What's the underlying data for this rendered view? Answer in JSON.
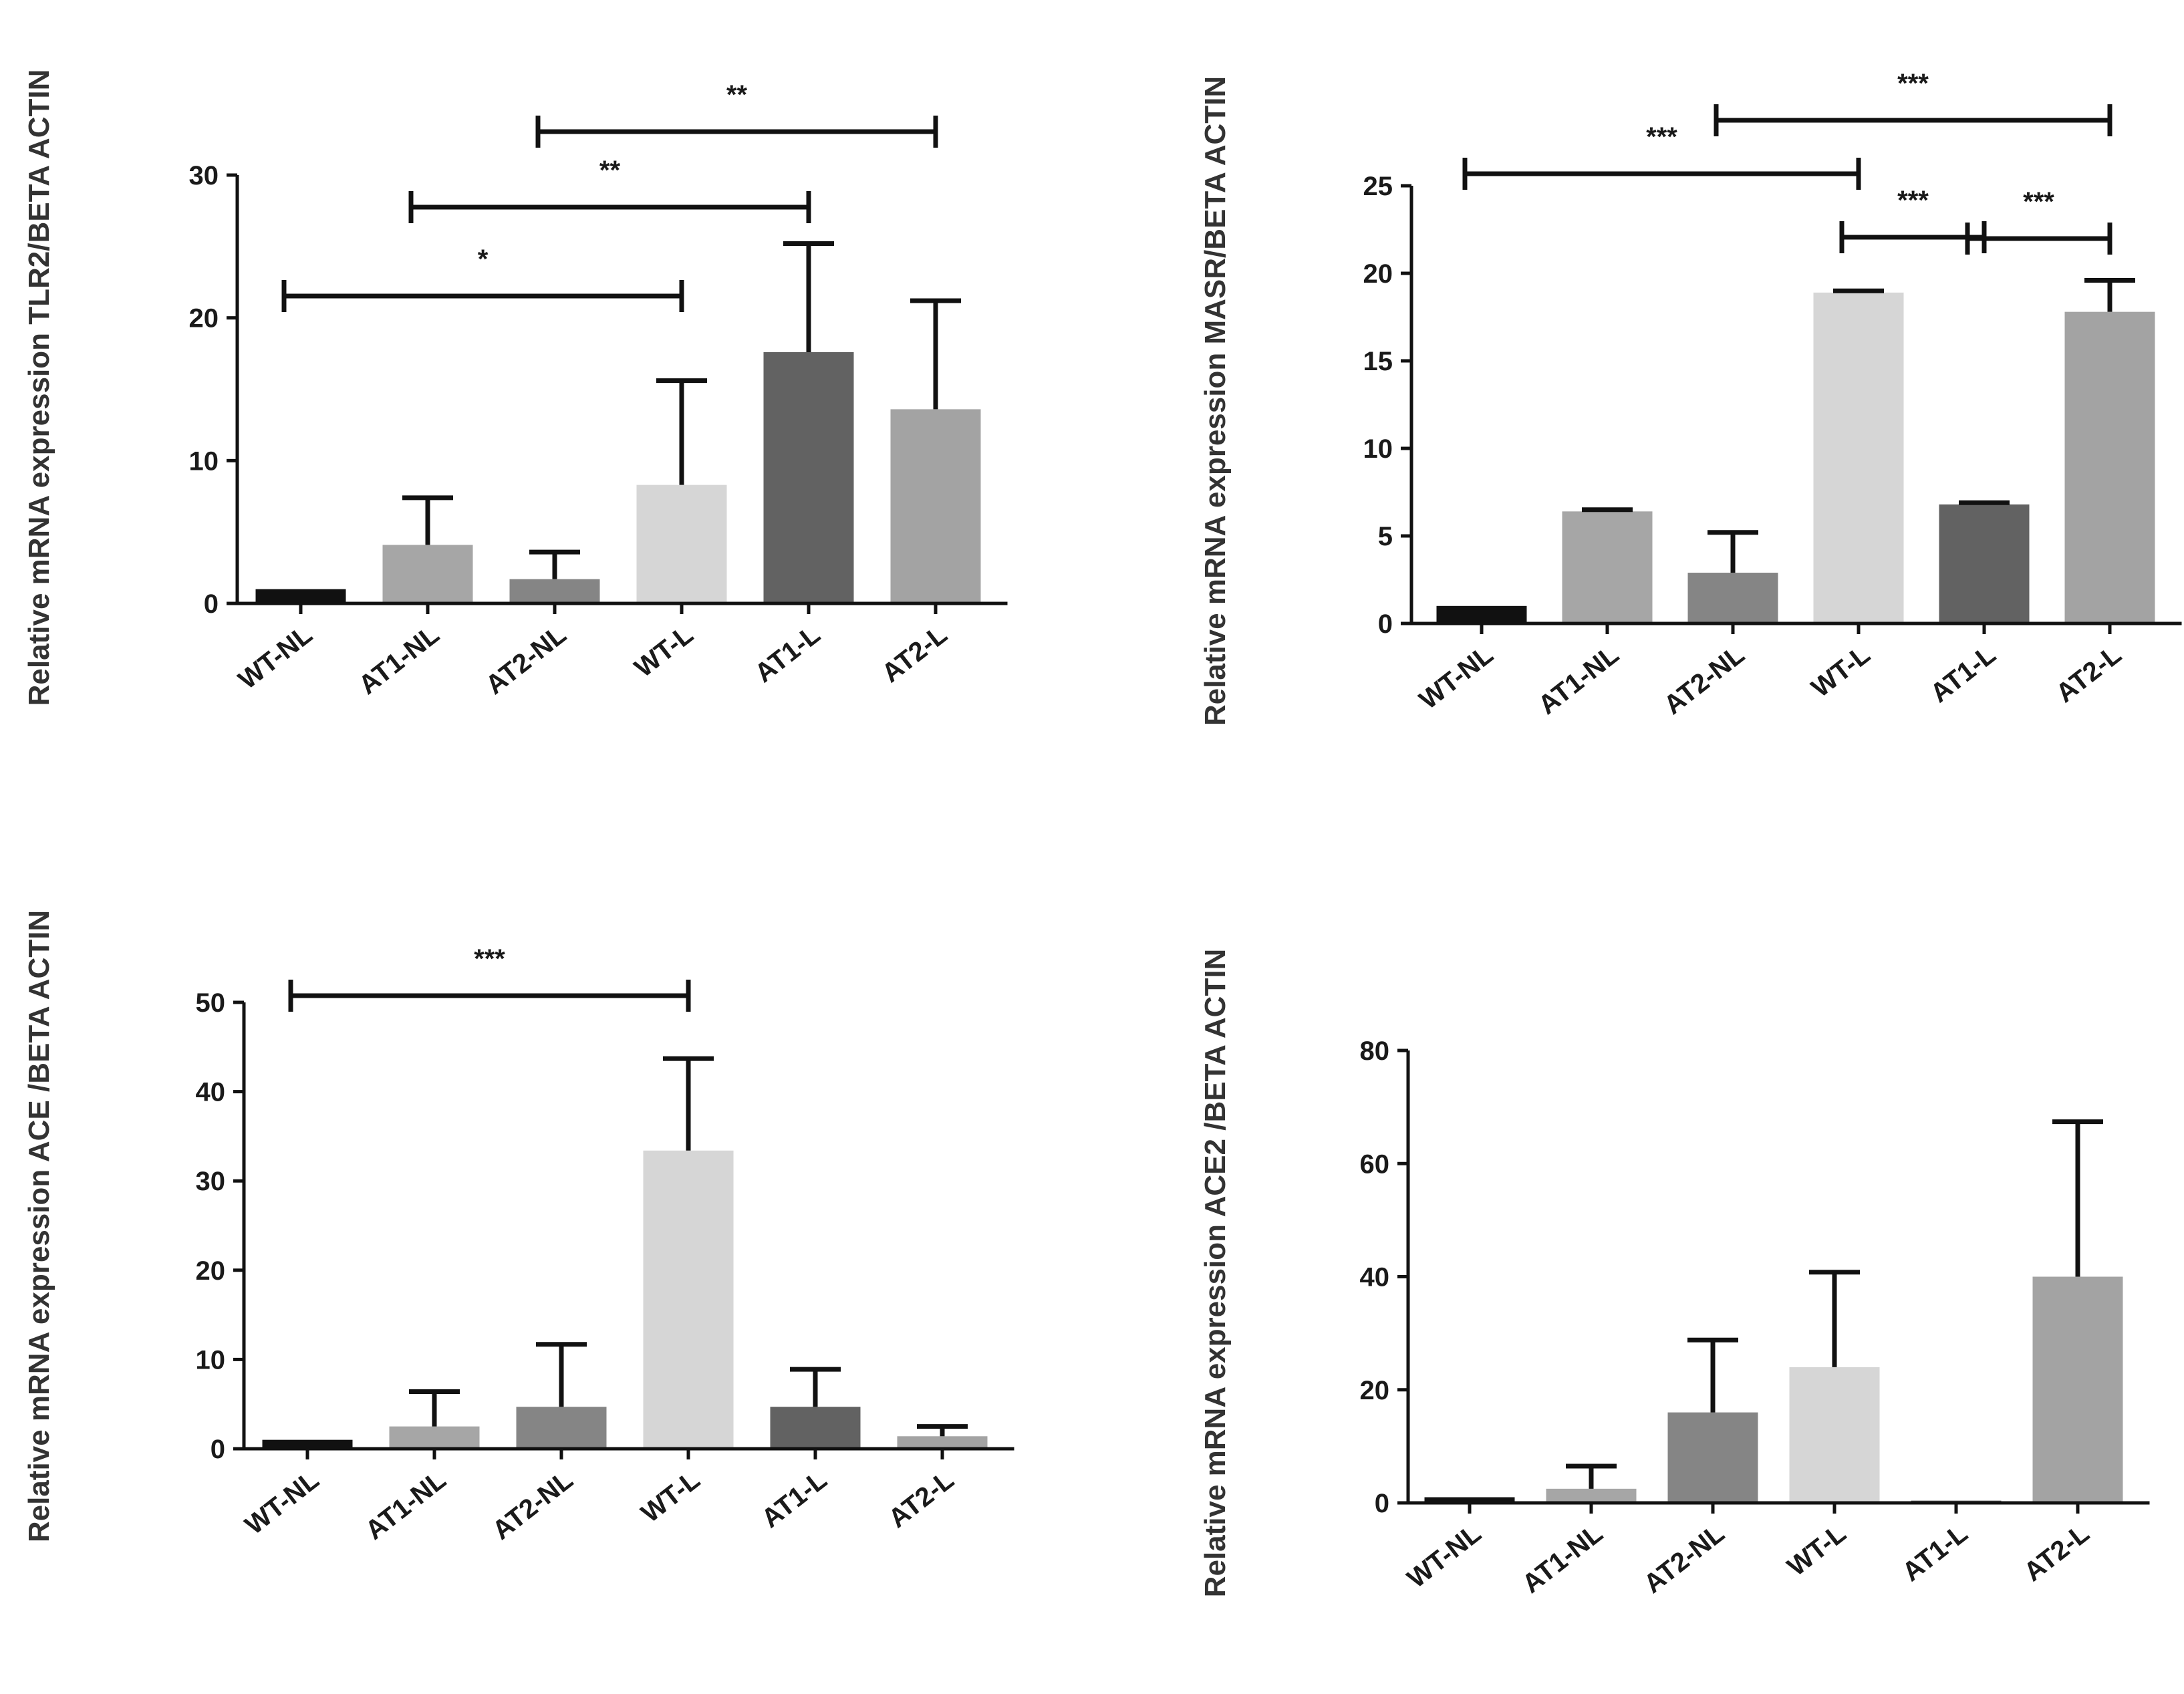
{
  "colors": {
    "WT-NL": "#111111",
    "AT1-NL": "#a6a6a6",
    "AT2-NL": "#858585",
    "WT-L": "#d6d6d6",
    "AT1-L": "#626262",
    "AT2-L": "#a3a3a3",
    "axis": "#111111"
  },
  "chart_data": [
    {
      "type": "bar",
      "ylabel": "Relative mRNA expression TLR2/BETA ACTIN",
      "categories": [
        "WT-NL",
        "AT1-NL",
        "AT2-NL",
        "WT-L",
        "AT1-L",
        "AT2-L"
      ],
      "values": [
        1,
        4.1,
        1.7,
        8.3,
        17.6,
        13.6
      ],
      "errors": [
        0,
        3.3,
        1.9,
        7.3,
        7.6,
        7.6
      ],
      "ylim": [
        0,
        30
      ],
      "yticks": [
        0,
        10,
        20,
        30
      ],
      "significance": [
        {
          "from": 0,
          "to": 3,
          "label": "*"
        },
        {
          "from": 1,
          "to": 4,
          "label": "**"
        },
        {
          "from": 2,
          "to": 5,
          "label": "**"
        }
      ]
    },
    {
      "type": "bar",
      "ylabel": "Relative mRNA  expression MASR/BETA ACTIN",
      "categories": [
        "WT-NL",
        "AT1-NL",
        "AT2-NL",
        "WT-L",
        "AT1-L",
        "AT2-L"
      ],
      "values": [
        1,
        6.4,
        2.9,
        18.9,
        6.8,
        17.8
      ],
      "errors": [
        0,
        0.1,
        2.3,
        0.1,
        0.1,
        1.8
      ],
      "ylim": [
        0,
        25
      ],
      "yticks": [
        0,
        5,
        10,
        15,
        20,
        25
      ],
      "significance": [
        {
          "from": 0,
          "to": 3,
          "label": "***"
        },
        {
          "from": 2,
          "to": 5,
          "label": "***"
        },
        {
          "from": 3,
          "to": 4,
          "label": "***"
        },
        {
          "from": 4,
          "to": 5,
          "label": "***"
        }
      ]
    },
    {
      "type": "bar",
      "ylabel": "Relative mRNA expression ACE /BETA ACTIN",
      "categories": [
        "WT-NL",
        "AT1-NL",
        "AT2-NL",
        "WT-L",
        "AT1-L",
        "AT2-L"
      ],
      "values": [
        1,
        2.5,
        4.7,
        33.4,
        4.7,
        1.4
      ],
      "errors": [
        0,
        3.9,
        7.0,
        10.3,
        4.2,
        1.1
      ],
      "ylim": [
        0,
        50
      ],
      "yticks": [
        0,
        10,
        20,
        30,
        40,
        50
      ],
      "significance": [
        {
          "from": 0,
          "to": 3,
          "label": "***"
        }
      ]
    },
    {
      "type": "bar",
      "ylabel": "Relative mRNA expression ACE2 /BETA ACTIN",
      "categories": [
        "WT-NL",
        "AT1-NL",
        "AT2-NL",
        "WT-L",
        "AT1-L",
        "AT2-L"
      ],
      "values": [
        1,
        2.5,
        16,
        24,
        0.4,
        40
      ],
      "errors": [
        0,
        4.0,
        12.8,
        16.8,
        0,
        27.4
      ],
      "ylim": [
        0,
        80
      ],
      "yticks": [
        0,
        20,
        40,
        60,
        80
      ],
      "significance": []
    }
  ]
}
